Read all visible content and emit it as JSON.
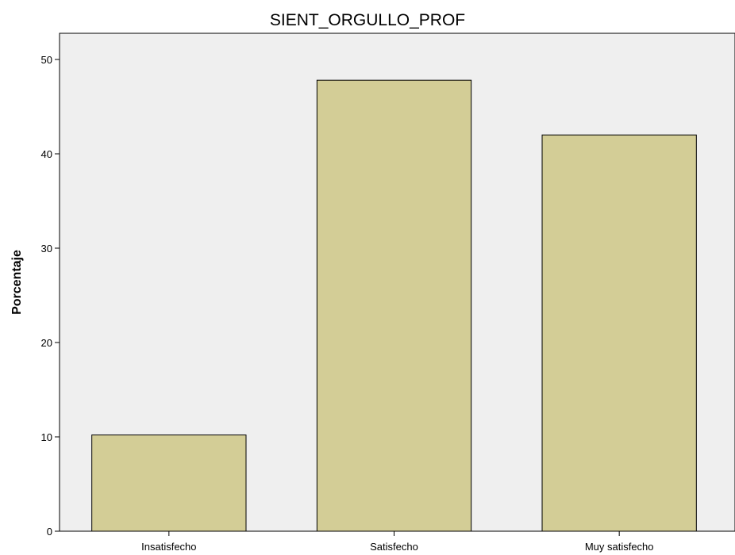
{
  "chart_data": {
    "type": "bar",
    "title": "SIENT_ORGULLO_PROF",
    "xlabel": "",
    "ylabel": "Porcentaje",
    "categories": [
      "Insatisfecho",
      "Satisfecho",
      "Muy satisfecho"
    ],
    "values": [
      10.2,
      47.8,
      42.0
    ],
    "ylim": [
      0,
      50
    ],
    "yticks": [
      0,
      10,
      20,
      30,
      40,
      50
    ],
    "grid": false,
    "legend": "none",
    "colors": {
      "bar_fill": "#d3cd96",
      "bar_stroke": "#000000",
      "plot_background": "#efefef",
      "axis": "#000000"
    }
  }
}
